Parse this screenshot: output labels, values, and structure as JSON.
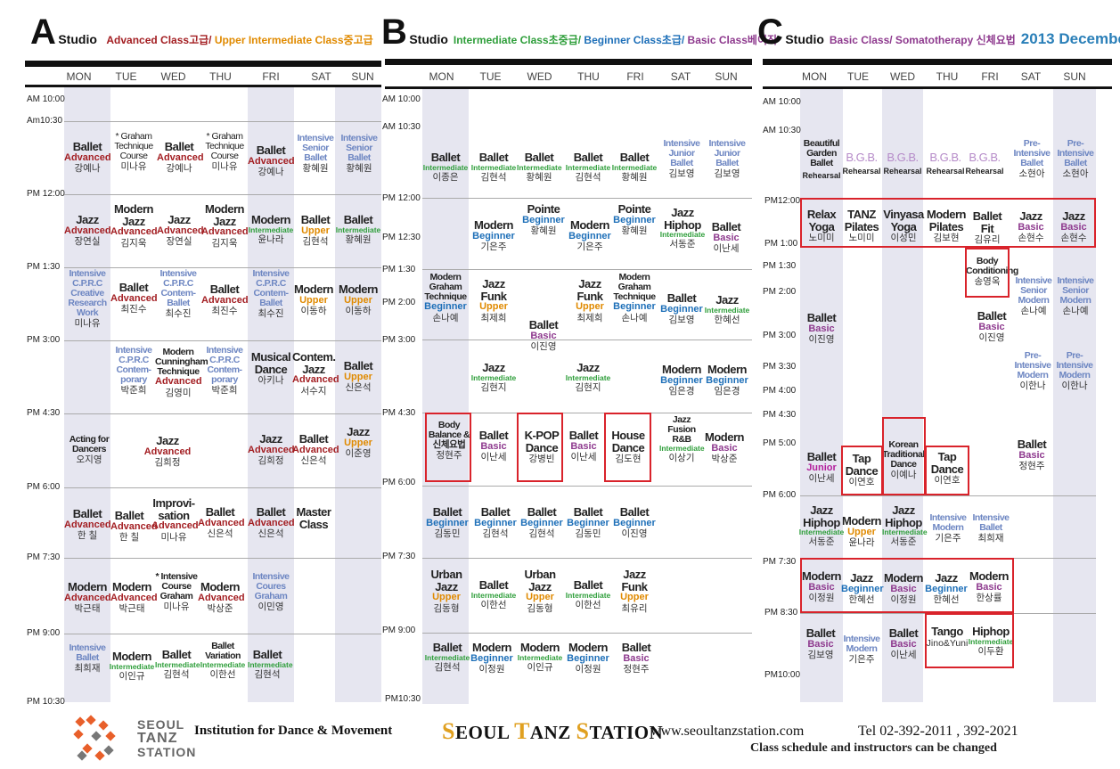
{
  "studios": [
    {
      "letter": "A",
      "studio_label": "Studio",
      "subtitle_parts": [
        {
          "text": "Advanced Class",
          "color": "#a31e22"
        },
        {
          "text": "고급/ ",
          "color": "#a31e22"
        },
        {
          "text": "Upper Intermediate Class",
          "color": "#e08a00"
        },
        {
          "text": "중고급",
          "color": "#e08a00"
        }
      ],
      "days": [
        "MON",
        "TUE",
        "WED",
        "THU",
        "FRI",
        "SAT",
        "SUN"
      ],
      "times": [
        "AM 10:00",
        "Am10:30",
        "PM 12:00",
        "PM 1:30",
        "PM 3:00",
        "PM 4:30",
        "PM 6:00",
        "PM 7:30",
        "PM 9:00",
        "PM 10:30"
      ]
    },
    {
      "letter": "B",
      "studio_label": "Studio",
      "subtitle_parts": [
        {
          "text": "Intermediate Class",
          "color": "#2e9e3a"
        },
        {
          "text": "초중급/ ",
          "color": "#2e9e3a"
        },
        {
          "text": "Beginner Class",
          "color": "#1d6fb8"
        },
        {
          "text": "초급/ ",
          "color": "#1d6fb8"
        },
        {
          "text": "Basic Class",
          "color": "#8e3a8e"
        },
        {
          "text": "베이직",
          "color": "#8e3a8e"
        }
      ],
      "days": [
        "MON",
        "TUE",
        "WED",
        "THU",
        "FRI",
        "SAT",
        "SUN"
      ],
      "times": [
        "AM 10:00",
        "AM 10:30",
        "PM 12:00",
        "PM 12:30",
        "PM 1:30",
        "PM 2:00",
        "PM 3:00",
        "PM 4:30",
        "PM 6:00",
        "PM 7:30",
        "PM 9:00",
        "PM10:30"
      ]
    },
    {
      "letter": "C",
      "studio_label": "Studio",
      "subtitle_parts": [
        {
          "text": "Basic Class/ Somatotherapy ",
          "color": "#8e3a8e"
        },
        {
          "text": "신체요법",
          "color": "#8e3a8e"
        }
      ],
      "year": "2013 December",
      "days": [
        "MON",
        "TUE",
        "WED",
        "THU",
        "FRI",
        "SAT",
        "SUN"
      ],
      "times": [
        "AM 10:00",
        "AM 10:30",
        "PM12:00",
        "PM 1:00",
        "PM 1:30",
        "PM 2:00",
        "PM 3:00",
        "PM 3:30",
        "PM 4:00",
        "PM 4:30",
        "PM 5:00",
        "PM 6:00",
        "PM 7:30",
        "PM 8:30",
        "PM10:00"
      ]
    }
  ],
  "footer": {
    "logo_lines": [
      "SEOUL",
      "TANZ",
      "STATION"
    ],
    "institution": "Institution for Dance & Movement",
    "brand": [
      {
        "cap": "S",
        "rest": "EOUL "
      },
      {
        "cap": "T",
        "rest": "ANZ "
      },
      {
        "cap": "S",
        "rest": "TATION"
      }
    ],
    "website": "www.seoultanzstation.com",
    "tel": "Tel 02-392-2011   , 392-2021",
    "note": "Class schedule and instructors can be changed"
  },
  "colors": {
    "advanced": "#a31e22",
    "upper": "#e08a00",
    "intermediate": "#2e9e3a",
    "beginner": "#1d6fb8",
    "basic": "#8e3a8e",
    "junior": "#b31f9c",
    "senior": "#5c6dae",
    "highlight_box": "#d9232b",
    "day_stripe": "#e6e6f0"
  },
  "classes_A": [
    [
      "Ballet",
      "Advanced",
      "강예나"
    ],
    [
      "* Graham Technique Course",
      "",
      "미나유"
    ],
    [
      "Ballet",
      "Advanced",
      "강예나"
    ],
    [
      "* Graham Technique Course",
      "",
      "미나유"
    ],
    [
      "Ballet",
      "Advanced",
      "강예나"
    ],
    [
      "Intensive Senior Ballet",
      "",
      "황혜원"
    ],
    [
      "Intensive Senior Ballet",
      "",
      "황혜원"
    ],
    [
      "Jazz",
      "Advanced",
      "장연실"
    ],
    [
      "Modern Jazz",
      "Advanced",
      "김지욱"
    ],
    [
      "Jazz",
      "Advanced",
      "장연실"
    ],
    [
      "Modern Jazz",
      "Advanced",
      "김지욱"
    ],
    [
      "Modern",
      "Intermediate",
      "윤나라"
    ],
    [
      "Ballet",
      "Upper",
      "김현석"
    ],
    [
      "Ballet",
      "Intermediate",
      "황혜원"
    ],
    [
      "Intensive C.P.R.C Creative Research Work",
      "",
      "미나유"
    ],
    [
      "Ballet",
      "Advanced",
      "최진수"
    ],
    [
      "Intensive C.P.R.C Contem-Ballet",
      "",
      "최수진"
    ],
    [
      "Ballet",
      "Advanced",
      "최진수"
    ],
    [
      "Intensive C.P.R.C Contem-Ballet",
      "",
      "최수진"
    ],
    [
      "Modern",
      "Upper",
      "이동하"
    ],
    [
      "Modern",
      "Upper",
      "이동하"
    ],
    [
      "Intensive C.P.R.C Contem-porary",
      "",
      "박준희"
    ],
    [
      "Modern Cunningham Technique",
      "Advanced",
      "김영미"
    ],
    [
      "Intensive C.P.R.C Contem-porary",
      "",
      "박준희"
    ],
    [
      "Musical Dance",
      "",
      "아키나"
    ],
    [
      "Contem. Jazz",
      "Advanced",
      "서수지"
    ],
    [
      "Ballet",
      "Upper",
      "신은석"
    ],
    [
      "Acting for Dancers",
      "",
      "오지영"
    ],
    [
      "Jazz",
      "Advanced",
      "김희정"
    ],
    [
      "Jazz",
      "Advanced",
      "김희정"
    ],
    [
      "Ballet",
      "Advanced",
      "신은석"
    ],
    [
      "Jazz",
      "Upper",
      "이준영"
    ],
    [
      "Ballet",
      "Advanced",
      "한 칠"
    ],
    [
      "Ballet",
      "Advanced",
      "한 칠"
    ],
    [
      "Improvi-sation",
      "Advanced",
      "미나유"
    ],
    [
      "Ballet",
      "Advanced",
      "신은석"
    ],
    [
      "Ballet",
      "Advanced",
      "신은석"
    ],
    [
      "Master Class",
      "",
      ""
    ],
    [
      "Modern",
      "Advanced",
      "박근태"
    ],
    [
      "Modern",
      "Advanced",
      "박근태"
    ],
    [
      "* Intensive Course Graham",
      "",
      "미나유"
    ],
    [
      "Modern",
      "Advanced",
      "박상준"
    ],
    [
      "Intensive Coures Graham",
      "",
      "이민영"
    ],
    [
      "Intensive Ballet",
      "",
      "최희재"
    ],
    [
      "Modern",
      "Intermediate",
      "이인규"
    ],
    [
      "Ballet",
      "Intermediate",
      "김현석"
    ],
    [
      "Ballet Variation",
      "Intermediate",
      "이한선"
    ],
    [
      "Ballet",
      "Intermediate",
      "김현석"
    ]
  ],
  "classes_B": [
    [
      "Ballet",
      "Intermediate",
      "이종은"
    ],
    [
      "Ballet",
      "Intermediate",
      "김현석"
    ],
    [
      "Ballet",
      "Intermediate",
      "황혜원"
    ],
    [
      "Ballet",
      "Intermediate",
      "김현석"
    ],
    [
      "Ballet",
      "Intermediate",
      "황혜원"
    ],
    [
      "Intensive Junior Ballet",
      "",
      "김보영"
    ],
    [
      "Intensive Junior Ballet",
      "",
      "김보영"
    ],
    [
      "Modern",
      "Beginner",
      "기은주"
    ],
    [
      "Pointe",
      "Beginner",
      "황혜원"
    ],
    [
      "Modern",
      "Beginner",
      "기은주"
    ],
    [
      "Pointe",
      "Beginner",
      "황혜원"
    ],
    [
      "Jazz Hiphop",
      "Intermediate",
      "서동준"
    ],
    [
      "Ballet",
      "Basic",
      "이난세"
    ],
    [
      "Modern Graham Technique",
      "Beginner",
      "손나예"
    ],
    [
      "Jazz Funk",
      "Upper",
      "최제희"
    ],
    [
      "Ballet",
      "Basic",
      "이진영"
    ],
    [
      "Jazz Funk",
      "Upper",
      "최제희"
    ],
    [
      "Modern Graham Technique",
      "Beginner",
      "손나예"
    ],
    [
      "Ballet",
      "Beginner",
      "김보영"
    ],
    [
      "Jazz",
      "Intermediate",
      "한혜선"
    ],
    [
      "Jazz",
      "Intermediate",
      "김현지"
    ],
    [
      "Jazz",
      "Intermediate",
      "김현지"
    ],
    [
      "Modern",
      "Beginner",
      "임은경"
    ],
    [
      "Modern",
      "Beginner",
      "임은경"
    ],
    [
      "Body Balance & 신체요법",
      "",
      "정현주"
    ],
    [
      "Ballet",
      "Basic",
      "이난세"
    ],
    [
      "K-POP Dance",
      "",
      "강병빈"
    ],
    [
      "Ballet",
      "Basic",
      "이난세"
    ],
    [
      "House Dance",
      "",
      "김도현"
    ],
    [
      "Jazz Fusion R&B",
      "Intermediate",
      "이상기"
    ],
    [
      "Modern",
      "Basic",
      "박상준"
    ],
    [
      "Ballet",
      "Beginner",
      "김동민"
    ],
    [
      "Ballet",
      "Beginner",
      "김현석"
    ],
    [
      "Ballet",
      "Beginner",
      "김현석"
    ],
    [
      "Ballet",
      "Beginner",
      "김동민"
    ],
    [
      "Ballet",
      "Beginner",
      "이진영"
    ],
    [
      "Urban Jazz",
      "Upper",
      "김동형"
    ],
    [
      "Ballet",
      "Intermediate",
      "이한선"
    ],
    [
      "Urban Jazz",
      "Upper",
      "김동형"
    ],
    [
      "Ballet",
      "Intermediate",
      "이한선"
    ],
    [
      "Jazz Funk",
      "Upper",
      "최유리"
    ],
    [
      "Ballet",
      "Intermediate",
      "김현석"
    ],
    [
      "Modern",
      "Beginner",
      "이정원"
    ],
    [
      "Modern",
      "Intermediate",
      "이인규"
    ],
    [
      "Modern",
      "Beginner",
      "이정원"
    ],
    [
      "Ballet",
      "Basic",
      "정현주"
    ]
  ],
  "classes_C": [
    [
      "Beautiful Garden Ballet",
      "Rehearsal",
      ""
    ],
    [
      "B.G.B.",
      "Rehearsal",
      ""
    ],
    [
      "B.G.B.",
      "Rehearsal",
      ""
    ],
    [
      "B.G.B.",
      "Rehearsal",
      ""
    ],
    [
      "B.G.B.",
      "Rehearsal",
      ""
    ],
    [
      "Pre-Intensive Ballet",
      "",
      "소현아"
    ],
    [
      "Pre-Intensive Ballet",
      "",
      "소현아"
    ],
    [
      "Relax Yoga",
      "",
      "노미미"
    ],
    [
      "TANZ Pilates",
      "",
      "노미미"
    ],
    [
      "Vinyasa Yoga",
      "",
      "이성민"
    ],
    [
      "Modern Pilates",
      "",
      "김보현"
    ],
    [
      "Ballet Fit",
      "",
      "김유리"
    ],
    [
      "Jazz",
      "Basic",
      "손현수"
    ],
    [
      "Jazz",
      "Basic",
      "손현수"
    ],
    [
      "Body Conditioning",
      "",
      "송영옥"
    ],
    [
      "Intensive Senior Modern",
      "",
      "손나예"
    ],
    [
      "Intensive Senior Modern",
      "",
      "손나예"
    ],
    [
      "Ballet",
      "Basic",
      "이진영"
    ],
    [
      "Ballet",
      "Basic",
      "이진영"
    ],
    [
      "Pre-Intensive Modern",
      "",
      "이한나"
    ],
    [
      "Pre-Intensive Modern",
      "",
      "이한나"
    ],
    [
      "Ballet",
      "Junior",
      "이난세"
    ],
    [
      "Tap Dance",
      "",
      "이연호"
    ],
    [
      "Korean Traditional Dance",
      "",
      "이예나"
    ],
    [
      "Tap Dance",
      "",
      "이연호"
    ],
    [
      "Ballet",
      "Basic",
      "정현주"
    ],
    [
      "Jazz Hiphop",
      "Intermediate",
      "서동준"
    ],
    [
      "Modern",
      "Upper",
      "윤나라"
    ],
    [
      "Jazz Hiphop",
      "Intermediate",
      "서동준"
    ],
    [
      "Intensive Modern",
      "",
      "기은주"
    ],
    [
      "Intensive Ballet",
      "",
      "최희재"
    ],
    [
      "Modern",
      "Basic",
      "이정원"
    ],
    [
      "Jazz",
      "Beginner",
      "한혜선"
    ],
    [
      "Modern",
      "Basic",
      "이정원"
    ],
    [
      "Jazz",
      "Beginner",
      "한혜선"
    ],
    [
      "Modern",
      "Basic",
      "한상률"
    ],
    [
      "Ballet",
      "Basic",
      "김보영"
    ],
    [
      "Intensive Modern",
      "",
      "기은주"
    ],
    [
      "Ballet",
      "Basic",
      "이난세"
    ],
    [
      "Tango",
      "",
      "Jino&Yuni"
    ],
    [
      "Hiphop",
      "Intermediate",
      "이두환"
    ]
  ]
}
